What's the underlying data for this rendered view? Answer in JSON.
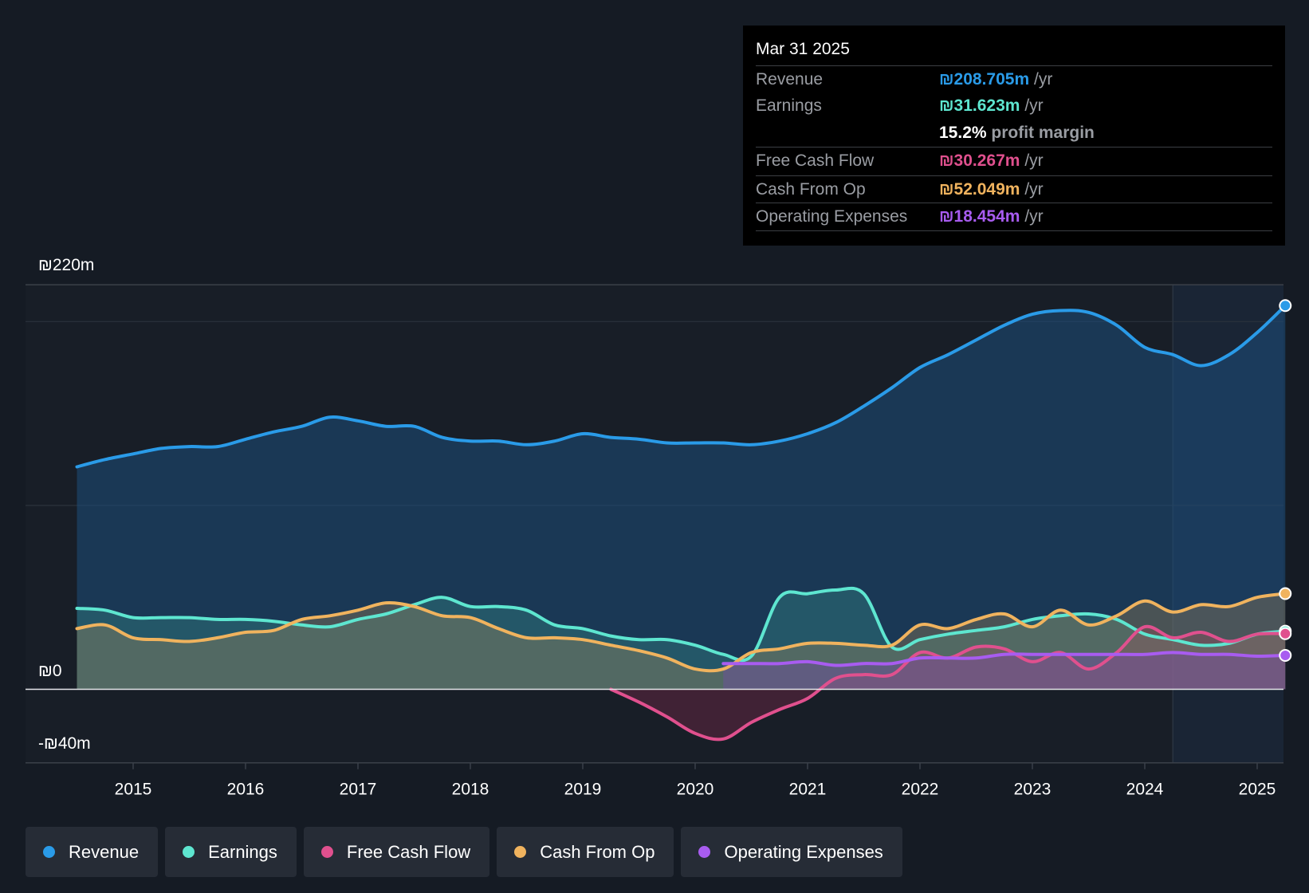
{
  "tooltip": {
    "date": "Mar 31 2025",
    "rows": [
      {
        "label": "Revenue",
        "value": "₪208.705m",
        "unit": "/yr",
        "color": "#2a9be8"
      },
      {
        "label": "Earnings",
        "value": "₪31.623m",
        "unit": "/yr",
        "color": "#5ee6d0"
      },
      {
        "margin": "15.2%",
        "margin_text": "profit margin"
      },
      {
        "label": "Free Cash Flow",
        "value": "₪30.267m",
        "unit": "/yr",
        "color": "#e0508e"
      },
      {
        "label": "Cash From Op",
        "value": "₪52.049m",
        "unit": "/yr",
        "color": "#f0b35e"
      },
      {
        "label": "Operating Expenses",
        "value": "₪18.454m",
        "unit": "/yr",
        "color": "#a85cf0"
      }
    ]
  },
  "legend": [
    {
      "label": "Revenue",
      "color": "#2a9be8"
    },
    {
      "label": "Earnings",
      "color": "#5ee6d0"
    },
    {
      "label": "Free Cash Flow",
      "color": "#e0508e"
    },
    {
      "label": "Cash From Op",
      "color": "#f0b35e"
    },
    {
      "label": "Operating Expenses",
      "color": "#a85cf0"
    }
  ],
  "chart_data": {
    "type": "area",
    "ylim": [
      -40,
      220
    ],
    "xlim": [
      2014.5,
      2025.25
    ],
    "y_tick_labels": {
      "top": "₪220m",
      "zero": "₪0",
      "bottom": "-₪40m"
    },
    "x_ticks": [
      2015,
      2016,
      2017,
      2018,
      2019,
      2020,
      2021,
      2022,
      2023,
      2024,
      2025
    ],
    "x_tick_labels": [
      "2015",
      "2016",
      "2017",
      "2018",
      "2019",
      "2020",
      "2021",
      "2022",
      "2023",
      "2024",
      "2025"
    ],
    "forecast_region_start": 2024.25,
    "series": [
      {
        "name": "Revenue",
        "color": "#2a9be8",
        "points": [
          [
            2014.5,
            121
          ],
          [
            2014.75,
            125
          ],
          [
            2015.0,
            128
          ],
          [
            2015.25,
            131
          ],
          [
            2015.5,
            132
          ],
          [
            2015.75,
            132
          ],
          [
            2016.0,
            136
          ],
          [
            2016.25,
            140
          ],
          [
            2016.5,
            143
          ],
          [
            2016.75,
            148
          ],
          [
            2017.0,
            146
          ],
          [
            2017.25,
            143
          ],
          [
            2017.5,
            143
          ],
          [
            2017.75,
            137
          ],
          [
            2018.0,
            135
          ],
          [
            2018.25,
            135
          ],
          [
            2018.5,
            133
          ],
          [
            2018.75,
            135
          ],
          [
            2019.0,
            139
          ],
          [
            2019.25,
            137
          ],
          [
            2019.5,
            136
          ],
          [
            2019.75,
            134
          ],
          [
            2020.0,
            134
          ],
          [
            2020.25,
            134
          ],
          [
            2020.5,
            133
          ],
          [
            2020.75,
            135
          ],
          [
            2021.0,
            139
          ],
          [
            2021.25,
            145
          ],
          [
            2021.5,
            154
          ],
          [
            2021.75,
            164
          ],
          [
            2022.0,
            175
          ],
          [
            2022.25,
            182
          ],
          [
            2022.5,
            190
          ],
          [
            2022.75,
            198
          ],
          [
            2023.0,
            204
          ],
          [
            2023.25,
            206
          ],
          [
            2023.5,
            205
          ],
          [
            2023.75,
            198
          ],
          [
            2024.0,
            186
          ],
          [
            2024.25,
            182
          ],
          [
            2024.5,
            176
          ],
          [
            2024.75,
            182
          ],
          [
            2025.0,
            194
          ],
          [
            2025.25,
            208.705
          ]
        ]
      },
      {
        "name": "Earnings",
        "color": "#5ee6d0",
        "points": [
          [
            2014.5,
            44
          ],
          [
            2014.75,
            43
          ],
          [
            2015.0,
            39
          ],
          [
            2015.25,
            39
          ],
          [
            2015.5,
            39
          ],
          [
            2015.75,
            38
          ],
          [
            2016.0,
            38
          ],
          [
            2016.25,
            37
          ],
          [
            2016.5,
            35
          ],
          [
            2016.75,
            34
          ],
          [
            2017.0,
            38
          ],
          [
            2017.25,
            41
          ],
          [
            2017.5,
            46
          ],
          [
            2017.75,
            50
          ],
          [
            2018.0,
            45
          ],
          [
            2018.25,
            45
          ],
          [
            2018.5,
            43
          ],
          [
            2018.75,
            35
          ],
          [
            2019.0,
            33
          ],
          [
            2019.25,
            29
          ],
          [
            2019.5,
            27
          ],
          [
            2019.75,
            27
          ],
          [
            2020.0,
            24
          ],
          [
            2020.25,
            19
          ],
          [
            2020.5,
            18
          ],
          [
            2020.75,
            50
          ],
          [
            2021.0,
            52
          ],
          [
            2021.25,
            54
          ],
          [
            2021.5,
            52
          ],
          [
            2021.75,
            23
          ],
          [
            2022.0,
            27
          ],
          [
            2022.25,
            30
          ],
          [
            2022.5,
            32
          ],
          [
            2022.75,
            34
          ],
          [
            2023.0,
            38
          ],
          [
            2023.25,
            40
          ],
          [
            2023.5,
            41
          ],
          [
            2023.75,
            38
          ],
          [
            2024.0,
            30
          ],
          [
            2024.25,
            27
          ],
          [
            2024.5,
            24
          ],
          [
            2024.75,
            25
          ],
          [
            2025.0,
            30
          ],
          [
            2025.25,
            31.623
          ]
        ]
      },
      {
        "name": "Free Cash Flow",
        "color": "#e0508e",
        "points": [
          [
            2019.25,
            0
          ],
          [
            2019.5,
            -7
          ],
          [
            2019.75,
            -15
          ],
          [
            2020.0,
            -24
          ],
          [
            2020.25,
            -27
          ],
          [
            2020.5,
            -18
          ],
          [
            2020.75,
            -11
          ],
          [
            2021.0,
            -5
          ],
          [
            2021.25,
            6
          ],
          [
            2021.5,
            8
          ],
          [
            2021.75,
            8
          ],
          [
            2022.0,
            20
          ],
          [
            2022.25,
            17
          ],
          [
            2022.5,
            23
          ],
          [
            2022.75,
            22
          ],
          [
            2023.0,
            15
          ],
          [
            2023.25,
            20
          ],
          [
            2023.5,
            11
          ],
          [
            2023.75,
            20
          ],
          [
            2024.0,
            34
          ],
          [
            2024.25,
            28
          ],
          [
            2024.5,
            31
          ],
          [
            2024.75,
            26
          ],
          [
            2025.0,
            30
          ],
          [
            2025.25,
            30.267
          ]
        ]
      },
      {
        "name": "Cash From Op",
        "color": "#f0b35e",
        "points": [
          [
            2014.5,
            33
          ],
          [
            2014.75,
            35
          ],
          [
            2015.0,
            28
          ],
          [
            2015.25,
            27
          ],
          [
            2015.5,
            26
          ],
          [
            2015.75,
            28
          ],
          [
            2016.0,
            31
          ],
          [
            2016.25,
            32
          ],
          [
            2016.5,
            38
          ],
          [
            2016.75,
            40
          ],
          [
            2017.0,
            43
          ],
          [
            2017.25,
            47
          ],
          [
            2017.5,
            45
          ],
          [
            2017.75,
            40
          ],
          [
            2018.0,
            39
          ],
          [
            2018.25,
            33
          ],
          [
            2018.5,
            28
          ],
          [
            2018.75,
            28
          ],
          [
            2019.0,
            27
          ],
          [
            2019.25,
            24
          ],
          [
            2019.5,
            21
          ],
          [
            2019.75,
            17
          ],
          [
            2020.0,
            11
          ],
          [
            2020.25,
            11
          ],
          [
            2020.5,
            20
          ],
          [
            2020.75,
            22
          ],
          [
            2021.0,
            25
          ],
          [
            2021.25,
            25
          ],
          [
            2021.5,
            24
          ],
          [
            2021.75,
            24
          ],
          [
            2022.0,
            35
          ],
          [
            2022.25,
            33
          ],
          [
            2022.5,
            38
          ],
          [
            2022.75,
            41
          ],
          [
            2023.0,
            34
          ],
          [
            2023.25,
            43
          ],
          [
            2023.5,
            35
          ],
          [
            2023.75,
            40
          ],
          [
            2024.0,
            48
          ],
          [
            2024.25,
            42
          ],
          [
            2024.5,
            46
          ],
          [
            2024.75,
            45
          ],
          [
            2025.0,
            50
          ],
          [
            2025.25,
            52.049
          ]
        ]
      },
      {
        "name": "Operating Expenses",
        "color": "#a85cf0",
        "points": [
          [
            2020.25,
            14
          ],
          [
            2020.5,
            14
          ],
          [
            2020.75,
            14
          ],
          [
            2021.0,
            15
          ],
          [
            2021.25,
            13
          ],
          [
            2021.5,
            14
          ],
          [
            2021.75,
            14
          ],
          [
            2022.0,
            17
          ],
          [
            2022.25,
            17
          ],
          [
            2022.5,
            17
          ],
          [
            2022.75,
            19
          ],
          [
            2023.0,
            19
          ],
          [
            2023.25,
            19
          ],
          [
            2023.5,
            19
          ],
          [
            2023.75,
            19
          ],
          [
            2024.0,
            19
          ],
          [
            2024.25,
            20
          ],
          [
            2024.5,
            19
          ],
          [
            2024.75,
            19
          ],
          [
            2025.0,
            18
          ],
          [
            2025.25,
            18.454
          ]
        ]
      }
    ]
  }
}
